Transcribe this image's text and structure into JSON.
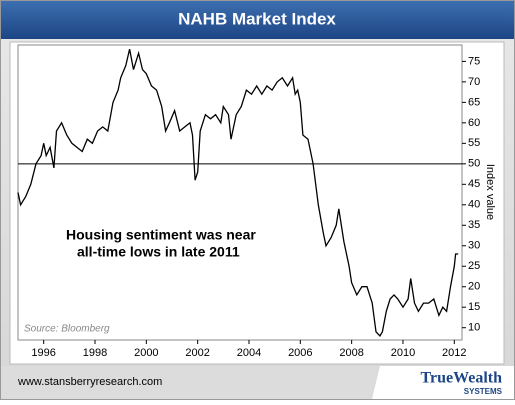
{
  "chart_data": {
    "type": "line",
    "title": "NAHB Market Index",
    "y_axis_label": "Index value",
    "source": "Source: Bloomberg",
    "annotation": [
      "Housing sentiment was near",
      "all-time lows in late 2011"
    ],
    "footer": {
      "url": "www.stansberryresearch.com",
      "logo": "TrueWealth",
      "logo_sub": "SYSTEMS"
    },
    "reference_line": 50,
    "xlim": [
      1995,
      2012.3
    ],
    "xticks": [
      1996,
      1998,
      2000,
      2002,
      2004,
      2006,
      2008,
      2010,
      2012
    ],
    "ylim": [
      7,
      79
    ],
    "yticks": [
      10,
      15,
      20,
      25,
      30,
      35,
      40,
      45,
      50,
      55,
      60,
      65,
      70,
      75
    ],
    "series": [
      {
        "name": "NAHB",
        "color": "#000000",
        "x": [
          1995.0,
          1995.1,
          1995.3,
          1995.5,
          1995.7,
          1995.9,
          1996.0,
          1996.1,
          1996.25,
          1996.4,
          1996.5,
          1996.7,
          1996.9,
          1997.1,
          1997.3,
          1997.5,
          1997.7,
          1997.9,
          1998.1,
          1998.3,
          1998.5,
          1998.7,
          1998.9,
          1999.0,
          1999.2,
          1999.35,
          1999.5,
          1999.7,
          1999.85,
          2000.0,
          2000.2,
          2000.4,
          2000.6,
          2000.75,
          2000.9,
          2001.1,
          2001.3,
          2001.5,
          2001.7,
          2001.8,
          2001.9,
          2002.0,
          2002.1,
          2002.3,
          2002.5,
          2002.7,
          2002.9,
          2003.0,
          2003.2,
          2003.3,
          2003.5,
          2003.7,
          2003.9,
          2004.1,
          2004.3,
          2004.5,
          2004.7,
          2004.9,
          2005.1,
          2005.3,
          2005.5,
          2005.7,
          2005.8,
          2005.9,
          2006.0,
          2006.1,
          2006.3,
          2006.5,
          2006.7,
          2006.9,
          2007.0,
          2007.2,
          2007.4,
          2007.5,
          2007.7,
          2007.9,
          2008.0,
          2008.2,
          2008.4,
          2008.6,
          2008.8,
          2008.95,
          2009.1,
          2009.2,
          2009.35,
          2009.5,
          2009.65,
          2009.8,
          2010.0,
          2010.2,
          2010.3,
          2010.45,
          2010.6,
          2010.8,
          2011.0,
          2011.2,
          2011.4,
          2011.55,
          2011.7,
          2011.85,
          2012.0,
          2012.05,
          2012.15
        ],
        "values": [
          43,
          40,
          42,
          45,
          50,
          52,
          55,
          52,
          54,
          49,
          58,
          60,
          57,
          55,
          54,
          53,
          56,
          55,
          58,
          59,
          58,
          65,
          68,
          71,
          74,
          78,
          73,
          77,
          73,
          72,
          69,
          68,
          64,
          58,
          60,
          63,
          58,
          59,
          60,
          57,
          46,
          48,
          58,
          62,
          61,
          62,
          60,
          64,
          62,
          56,
          62,
          64,
          68,
          67,
          69,
          67,
          69,
          68,
          70,
          71,
          69,
          71,
          67,
          68,
          65,
          57,
          56,
          50,
          40,
          33,
          30,
          32,
          35,
          39,
          31,
          25,
          21,
          18,
          20,
          20,
          16,
          9,
          8,
          9,
          14,
          17,
          18,
          17,
          15,
          17,
          22,
          16,
          14,
          16,
          16,
          17,
          13,
          15,
          14,
          20,
          25,
          28,
          28
        ]
      }
    ]
  }
}
